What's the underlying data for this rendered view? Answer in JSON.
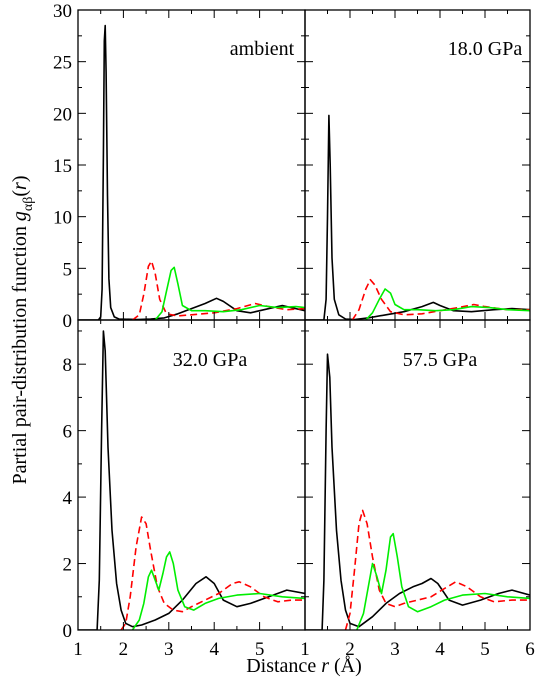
{
  "figure": {
    "xlabel": {
      "prefix": "Distance ",
      "var": "r",
      "suffix": " (Å)"
    },
    "ylabel": {
      "prefix": "Partial pair-distribution function ",
      "g": "g",
      "sub": "αβ",
      "arg_open": "(",
      "var": "r",
      "arg_close": ")"
    }
  },
  "colors": {
    "s1": "#000000",
    "s2": "#ff0000",
    "s3": "#00ee00"
  },
  "chart_data": [
    {
      "type": "line",
      "panel": "top-left",
      "title": "ambient",
      "xlim": [
        1,
        6
      ],
      "ylim": [
        0,
        30
      ],
      "yticks": [
        "0",
        "5",
        "10",
        "15",
        "20",
        "25",
        "30"
      ],
      "xticks": [],
      "series": [
        {
          "style": "solid",
          "color": "#000000",
          "points": [
            [
              1.0,
              0
            ],
            [
              1.45,
              0
            ],
            [
              1.5,
              0.3
            ],
            [
              1.53,
              3
            ],
            [
              1.56,
              16
            ],
            [
              1.58,
              27
            ],
            [
              1.6,
              28.5
            ],
            [
              1.62,
              24
            ],
            [
              1.65,
              12
            ],
            [
              1.68,
              4
            ],
            [
              1.72,
              1.2
            ],
            [
              1.8,
              0.3
            ],
            [
              1.9,
              0.1
            ],
            [
              2.3,
              0.05
            ],
            [
              2.6,
              0.1
            ],
            [
              2.9,
              0.2
            ],
            [
              3.2,
              0.6
            ],
            [
              3.5,
              1.1
            ],
            [
              3.8,
              1.6
            ],
            [
              4.05,
              2.1
            ],
            [
              4.2,
              1.8
            ],
            [
              4.5,
              0.9
            ],
            [
              4.8,
              0.7
            ],
            [
              5.1,
              1.0
            ],
            [
              5.5,
              1.4
            ],
            [
              5.7,
              1.2
            ],
            [
              6.0,
              0.9
            ]
          ]
        },
        {
          "style": "dashed",
          "color": "#ff0000",
          "points": [
            [
              2.2,
              0
            ],
            [
              2.35,
              0.5
            ],
            [
              2.45,
              2.5
            ],
            [
              2.55,
              5.2
            ],
            [
              2.62,
              5.7
            ],
            [
              2.7,
              4.5
            ],
            [
              2.8,
              2.0
            ],
            [
              2.95,
              0.6
            ],
            [
              3.2,
              0.4
            ],
            [
              3.5,
              0.5
            ],
            [
              4.0,
              0.7
            ],
            [
              4.5,
              1.1
            ],
            [
              4.9,
              1.6
            ],
            [
              5.2,
              1.3
            ],
            [
              5.6,
              1.0
            ],
            [
              6.0,
              1.1
            ]
          ]
        },
        {
          "style": "solid",
          "color": "#00ee00",
          "points": [
            [
              2.7,
              0
            ],
            [
              2.85,
              0.8
            ],
            [
              2.95,
              2.8
            ],
            [
              3.05,
              4.8
            ],
            [
              3.12,
              5.1
            ],
            [
              3.2,
              3.5
            ],
            [
              3.3,
              1.4
            ],
            [
              3.5,
              0.9
            ],
            [
              3.8,
              0.9
            ],
            [
              4.2,
              0.8
            ],
            [
              4.6,
              1.0
            ],
            [
              5.0,
              1.4
            ],
            [
              5.4,
              1.2
            ],
            [
              5.8,
              1.3
            ],
            [
              6.0,
              1.2
            ]
          ]
        }
      ]
    },
    {
      "type": "line",
      "panel": "top-right",
      "title": "18.0 GPa",
      "xlim": [
        1,
        6
      ],
      "ylim": [
        0,
        30
      ],
      "yticks": [],
      "xticks": [],
      "series": [
        {
          "style": "solid",
          "color": "#000000",
          "points": [
            [
              1.0,
              0
            ],
            [
              1.42,
              0
            ],
            [
              1.47,
              2
            ],
            [
              1.5,
              10
            ],
            [
              1.53,
              19.8
            ],
            [
              1.56,
              15
            ],
            [
              1.6,
              6
            ],
            [
              1.65,
              2
            ],
            [
              1.75,
              0.5
            ],
            [
              1.9,
              0.1
            ],
            [
              2.1,
              0.05
            ],
            [
              2.4,
              0.2
            ],
            [
              2.8,
              0.5
            ],
            [
              3.2,
              0.8
            ],
            [
              3.6,
              1.3
            ],
            [
              3.85,
              1.7
            ],
            [
              4.0,
              1.4
            ],
            [
              4.3,
              0.9
            ],
            [
              4.7,
              0.8
            ],
            [
              5.2,
              1.0
            ],
            [
              5.6,
              1.1
            ],
            [
              6.0,
              1.0
            ]
          ]
        },
        {
          "style": "dashed",
          "color": "#ff0000",
          "points": [
            [
              2.05,
              0
            ],
            [
              2.2,
              1.0
            ],
            [
              2.35,
              3.0
            ],
            [
              2.45,
              3.9
            ],
            [
              2.55,
              3.4
            ],
            [
              2.7,
              2.0
            ],
            [
              2.9,
              0.8
            ],
            [
              3.2,
              0.5
            ],
            [
              3.6,
              0.6
            ],
            [
              4.0,
              0.9
            ],
            [
              4.4,
              1.2
            ],
            [
              4.75,
              1.5
            ],
            [
              5.0,
              1.3
            ],
            [
              5.5,
              1.0
            ],
            [
              6.0,
              1.0
            ]
          ]
        },
        {
          "style": "solid",
          "color": "#00ee00",
          "points": [
            [
              2.35,
              0
            ],
            [
              2.5,
              0.7
            ],
            [
              2.65,
              2.0
            ],
            [
              2.78,
              3.0
            ],
            [
              2.9,
              2.6
            ],
            [
              3.0,
              1.5
            ],
            [
              3.2,
              1.0
            ],
            [
              3.5,
              1.0
            ],
            [
              3.9,
              0.9
            ],
            [
              4.3,
              1.0
            ],
            [
              4.7,
              1.3
            ],
            [
              5.1,
              1.2
            ],
            [
              5.5,
              1.0
            ],
            [
              6.0,
              0.9
            ]
          ]
        }
      ]
    },
    {
      "type": "line",
      "panel": "bottom-left",
      "title": "32.0 GPa",
      "xlim": [
        1,
        6
      ],
      "ylim": [
        0,
        9.33
      ],
      "yticks": [
        "0",
        "2",
        "4",
        "6",
        "8"
      ],
      "xticks": [
        "1",
        "2",
        "3",
        "4",
        "5"
      ],
      "series": [
        {
          "style": "solid",
          "color": "#000000",
          "points": [
            [
              1.0,
              0
            ],
            [
              1.42,
              0
            ],
            [
              1.47,
              1.5
            ],
            [
              1.52,
              6
            ],
            [
              1.56,
              9.0
            ],
            [
              1.6,
              8.4
            ],
            [
              1.66,
              5.5
            ],
            [
              1.75,
              3.0
            ],
            [
              1.85,
              1.4
            ],
            [
              1.95,
              0.6
            ],
            [
              2.05,
              0.2
            ],
            [
              2.2,
              0.1
            ],
            [
              2.4,
              0.15
            ],
            [
              2.7,
              0.3
            ],
            [
              3.0,
              0.5
            ],
            [
              3.3,
              0.9
            ],
            [
              3.6,
              1.4
            ],
            [
              3.82,
              1.6
            ],
            [
              4.0,
              1.4
            ],
            [
              4.2,
              0.9
            ],
            [
              4.5,
              0.7
            ],
            [
              4.8,
              0.8
            ],
            [
              5.2,
              1.0
            ],
            [
              5.6,
              1.2
            ],
            [
              6.0,
              1.1
            ]
          ]
        },
        {
          "style": "dashed",
          "color": "#ff0000",
          "points": [
            [
              1.95,
              0
            ],
            [
              2.05,
              0.2
            ],
            [
              2.15,
              1.0
            ],
            [
              2.28,
              2.5
            ],
            [
              2.4,
              3.4
            ],
            [
              2.5,
              3.2
            ],
            [
              2.6,
              2.4
            ],
            [
              2.75,
              1.3
            ],
            [
              2.9,
              0.8
            ],
            [
              3.1,
              0.6
            ],
            [
              3.3,
              0.55
            ],
            [
              3.5,
              0.7
            ],
            [
              3.8,
              0.9
            ],
            [
              4.1,
              1.1
            ],
            [
              4.4,
              1.4
            ],
            [
              4.55,
              1.45
            ],
            [
              4.8,
              1.3
            ],
            [
              5.1,
              1.0
            ],
            [
              5.4,
              0.85
            ],
            [
              5.7,
              0.9
            ],
            [
              6.0,
              0.9
            ]
          ]
        },
        {
          "style": "solid",
          "color": "#00ee00",
          "points": [
            [
              2.2,
              0
            ],
            [
              2.35,
              0.3
            ],
            [
              2.45,
              0.8
            ],
            [
              2.55,
              1.6
            ],
            [
              2.62,
              1.8
            ],
            [
              2.7,
              1.5
            ],
            [
              2.78,
              1.2
            ],
            [
              2.87,
              1.7
            ],
            [
              2.95,
              2.2
            ],
            [
              3.02,
              2.35
            ],
            [
              3.1,
              2.0
            ],
            [
              3.2,
              1.2
            ],
            [
              3.35,
              0.7
            ],
            [
              3.55,
              0.6
            ],
            [
              3.8,
              0.8
            ],
            [
              4.1,
              0.95
            ],
            [
              4.5,
              1.05
            ],
            [
              5.0,
              1.1
            ],
            [
              5.5,
              1.0
            ],
            [
              6.0,
              0.95
            ]
          ]
        }
      ]
    },
    {
      "type": "line",
      "panel": "bottom-right",
      "title": "57.5 GPa",
      "xlim": [
        1,
        6
      ],
      "ylim": [
        0,
        9.33
      ],
      "yticks": [],
      "xticks": [
        "1",
        "2",
        "3",
        "4",
        "5",
        "6"
      ],
      "series": [
        {
          "style": "solid",
          "color": "#000000",
          "points": [
            [
              1.0,
              0
            ],
            [
              1.38,
              0
            ],
            [
              1.42,
              1.5
            ],
            [
              1.47,
              6
            ],
            [
              1.5,
              8.3
            ],
            [
              1.55,
              7.6
            ],
            [
              1.6,
              5.5
            ],
            [
              1.7,
              3.0
            ],
            [
              1.8,
              1.5
            ],
            [
              1.9,
              0.6
            ],
            [
              2.0,
              0.2
            ],
            [
              2.2,
              0.1
            ],
            [
              2.5,
              0.4
            ],
            [
              2.8,
              0.8
            ],
            [
              3.1,
              1.1
            ],
            [
              3.4,
              1.3
            ],
            [
              3.6,
              1.4
            ],
            [
              3.8,
              1.55
            ],
            [
              3.95,
              1.4
            ],
            [
              4.2,
              0.9
            ],
            [
              4.5,
              0.75
            ],
            [
              4.9,
              0.9
            ],
            [
              5.3,
              1.1
            ],
            [
              5.6,
              1.2
            ],
            [
              6.0,
              1.05
            ]
          ]
        },
        {
          "style": "dashed",
          "color": "#ff0000",
          "points": [
            [
              1.9,
              0
            ],
            [
              2.0,
              0.5
            ],
            [
              2.1,
              1.8
            ],
            [
              2.2,
              3.2
            ],
            [
              2.28,
              3.6
            ],
            [
              2.38,
              3.2
            ],
            [
              2.5,
              2.2
            ],
            [
              2.65,
              1.2
            ],
            [
              2.8,
              0.8
            ],
            [
              3.0,
              0.7
            ],
            [
              3.2,
              0.8
            ],
            [
              3.5,
              0.9
            ],
            [
              3.8,
              1.0
            ],
            [
              4.1,
              1.25
            ],
            [
              4.35,
              1.45
            ],
            [
              4.6,
              1.3
            ],
            [
              4.9,
              1.0
            ],
            [
              5.2,
              0.85
            ],
            [
              5.6,
              0.9
            ],
            [
              6.0,
              0.9
            ]
          ]
        },
        {
          "style": "solid",
          "color": "#00ee00",
          "points": [
            [
              2.15,
              0
            ],
            [
              2.3,
              0.5
            ],
            [
              2.42,
              1.4
            ],
            [
              2.5,
              2.0
            ],
            [
              2.6,
              1.6
            ],
            [
              2.7,
              1.1
            ],
            [
              2.8,
              1.8
            ],
            [
              2.9,
              2.8
            ],
            [
              2.96,
              2.9
            ],
            [
              3.05,
              2.2
            ],
            [
              3.15,
              1.3
            ],
            [
              3.3,
              0.7
            ],
            [
              3.5,
              0.55
            ],
            [
              3.8,
              0.7
            ],
            [
              4.1,
              0.9
            ],
            [
              4.5,
              1.05
            ],
            [
              5.0,
              1.1
            ],
            [
              5.5,
              1.0
            ],
            [
              6.0,
              0.95
            ]
          ]
        }
      ]
    }
  ]
}
